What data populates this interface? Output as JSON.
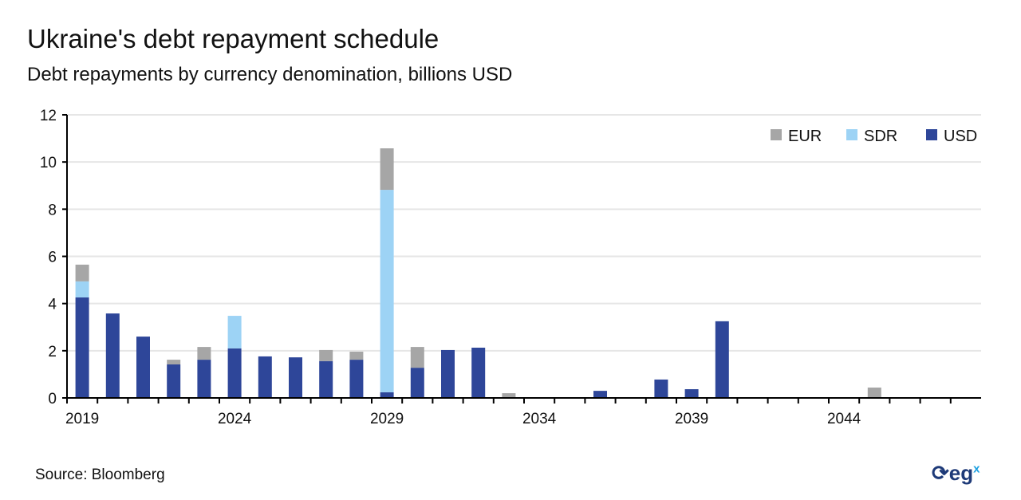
{
  "title": "Ukraine's debt repayment schedule",
  "subtitle": "Debt repayments by currency denomination, billions USD",
  "source": "Source:  Bloomberg",
  "logo_text": "eg",
  "logo_sup": "x",
  "chart_data": {
    "type": "bar",
    "stacked": true,
    "title": "Ukraine's debt repayment schedule",
    "ylabel": "billions USD",
    "ylim": [
      0,
      12
    ],
    "yticks": [
      0,
      2,
      4,
      6,
      8,
      10,
      12
    ],
    "xtick_labels": [
      "2019",
      "2024",
      "2029",
      "2034",
      "2039",
      "2044"
    ],
    "legend_position": "top-right",
    "categories": [
      2019,
      2020,
      2021,
      2022,
      2023,
      2024,
      2025,
      2026,
      2027,
      2028,
      2029,
      2030,
      2031,
      2032,
      2033,
      2034,
      2035,
      2036,
      2037,
      2038,
      2039,
      2040,
      2041,
      2042,
      2043,
      2044,
      2045,
      2046,
      2047,
      2048
    ],
    "series": [
      {
        "name": "USD",
        "color": "#2e4699",
        "values": [
          4.26,
          3.58,
          2.6,
          1.42,
          1.62,
          2.1,
          1.76,
          1.72,
          1.56,
          1.62,
          0.24,
          1.28,
          2.03,
          2.13,
          0,
          0,
          0,
          0.3,
          0,
          0.78,
          0.37,
          3.25,
          0,
          0,
          0,
          0,
          0,
          0,
          0,
          0
        ]
      },
      {
        "name": "SDR",
        "color": "#9dd3f5",
        "values": [
          0.68,
          0,
          0,
          0,
          0,
          1.38,
          0,
          0,
          0,
          0,
          8.58,
          0,
          0,
          0,
          0,
          0,
          0,
          0,
          0,
          0,
          0,
          0,
          0,
          0,
          0,
          0,
          0,
          0,
          0,
          0
        ]
      },
      {
        "name": "EUR",
        "color": "#a6a6a6",
        "values": [
          0.71,
          0,
          0,
          0.2,
          0.54,
          0,
          0,
          0,
          0.47,
          0.34,
          1.76,
          0.88,
          0,
          0,
          0.2,
          0,
          0,
          0,
          0,
          0,
          0,
          0,
          0,
          0,
          0,
          0,
          0.44,
          0,
          0,
          0
        ]
      }
    ],
    "legend_order": [
      "EUR",
      "SDR",
      "USD"
    ]
  }
}
